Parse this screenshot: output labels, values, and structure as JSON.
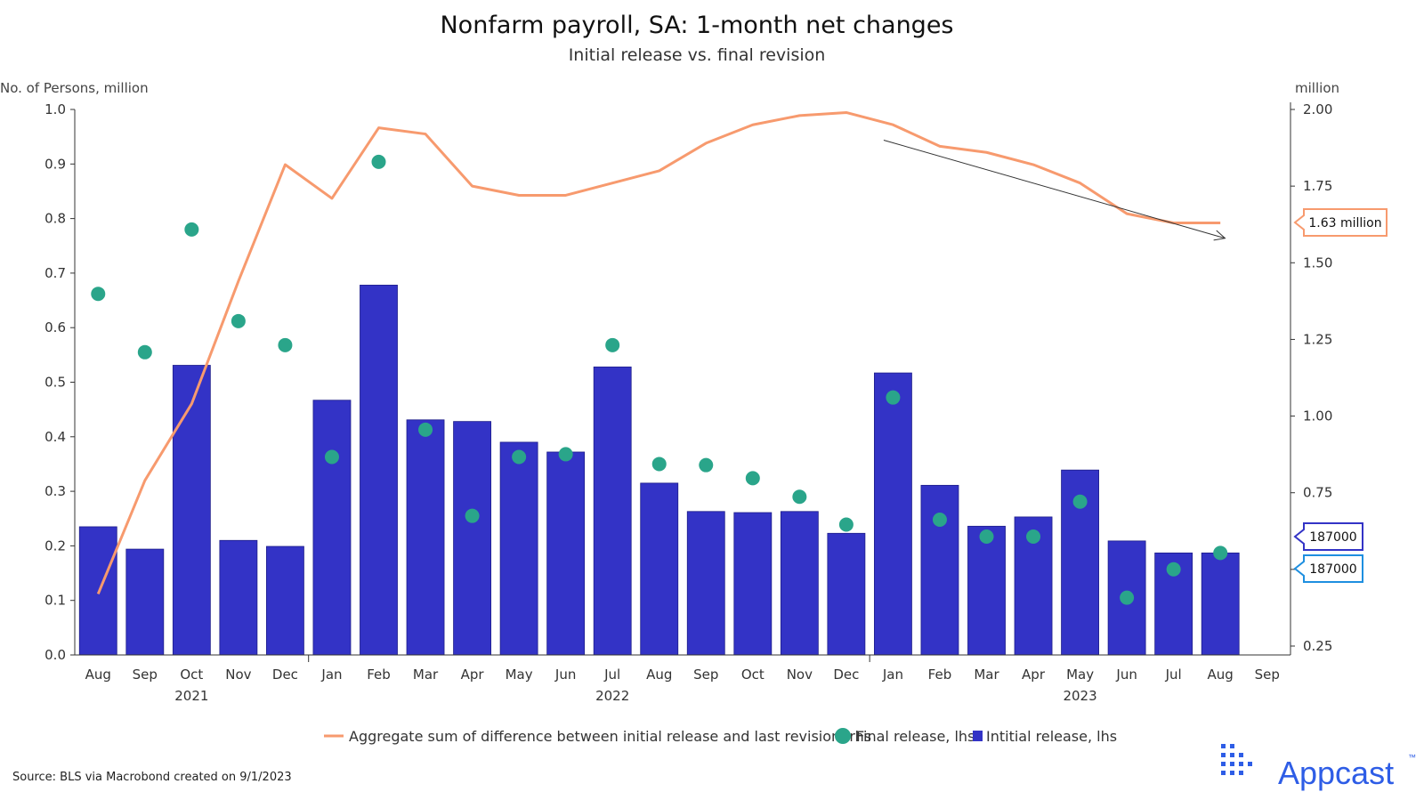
{
  "chart_data": {
    "type": "bar",
    "title": "Nonfarm payroll, SA: 1-month net changes",
    "subtitle": "Initial release vs. final revision",
    "ylabel_left": "No. of Persons, million",
    "ylabel_right": "million",
    "ylim_left": [
      0,
      1.0
    ],
    "ylim_right": [
      0.2,
      2.0
    ],
    "left_ticks": [
      "0.0",
      "0.1",
      "0.2",
      "0.3",
      "0.4",
      "0.5",
      "0.6",
      "0.7",
      "0.8",
      "0.9",
      "1.0"
    ],
    "right_ticks": [
      "0.25",
      "0.50",
      "0.75",
      "1.00",
      "1.25",
      "1.50",
      "1.75",
      "2.00"
    ],
    "categories": [
      "Aug",
      "Sep",
      "Oct",
      "Nov",
      "Dec",
      "Jan",
      "Feb",
      "Mar",
      "Apr",
      "May",
      "Jun",
      "Jul",
      "Aug",
      "Sep",
      "Oct",
      "Nov",
      "Dec",
      "Jan",
      "Feb",
      "Mar",
      "Apr",
      "May",
      "Jun",
      "Jul",
      "Aug",
      "Sep"
    ],
    "years": [
      {
        "label": "2021",
        "index": 2
      },
      {
        "label": "2022",
        "index": 11
      },
      {
        "label": "2023",
        "index": 21
      }
    ],
    "year_boundaries": [
      5,
      17
    ],
    "series": [
      {
        "name": "Intitial release, lhs",
        "type": "bar",
        "axis": "left",
        "color": "#3333c6",
        "values": [
          0.235,
          0.194,
          0.531,
          0.21,
          0.199,
          0.467,
          0.678,
          0.431,
          0.428,
          0.39,
          0.372,
          0.528,
          0.315,
          0.263,
          0.261,
          0.263,
          0.223,
          0.517,
          0.311,
          0.236,
          0.253,
          0.339,
          0.209,
          0.187,
          0.187,
          null
        ]
      },
      {
        "name": "Final release, lhs",
        "type": "scatter",
        "axis": "left",
        "color": "#2aa58a",
        "values": [
          0.662,
          0.555,
          0.78,
          0.612,
          0.568,
          0.363,
          0.904,
          0.413,
          0.255,
          0.363,
          0.368,
          0.568,
          0.35,
          0.348,
          0.324,
          0.29,
          0.239,
          0.472,
          0.248,
          0.217,
          0.217,
          0.281,
          0.105,
          0.157,
          0.187,
          null
        ]
      },
      {
        "name": "Aggregate sum of difference between initial release and last revision, rhs",
        "type": "line",
        "axis": "right",
        "color": "#f79a6e",
        "values": [
          0.42,
          0.79,
          1.04,
          1.44,
          1.82,
          1.71,
          1.94,
          1.92,
          1.75,
          1.72,
          1.72,
          1.76,
          1.8,
          1.89,
          1.95,
          1.98,
          1.99,
          1.95,
          1.88,
          1.86,
          1.82,
          1.76,
          1.66,
          1.63,
          1.63,
          null
        ]
      }
    ],
    "trend_arrow": {
      "from": {
        "index": 16.8,
        "value": 1.9
      },
      "to": {
        "index": 24.1,
        "value": 1.58
      }
    },
    "callouts": [
      {
        "label": "1.63 million",
        "axis": "right",
        "value": 1.63,
        "color": "#f79a6e"
      },
      {
        "label": "187000",
        "axis": "left",
        "value": 0.187,
        "color": "#3333c6"
      },
      {
        "label": "187000",
        "axis": "left",
        "value": 0.187,
        "color": "#1e8fe0"
      }
    ],
    "legend_position": "bottom-center",
    "grid": false
  },
  "source": "Source: BLS via Macrobond created on 9/1/2023",
  "logo": "Appcast"
}
